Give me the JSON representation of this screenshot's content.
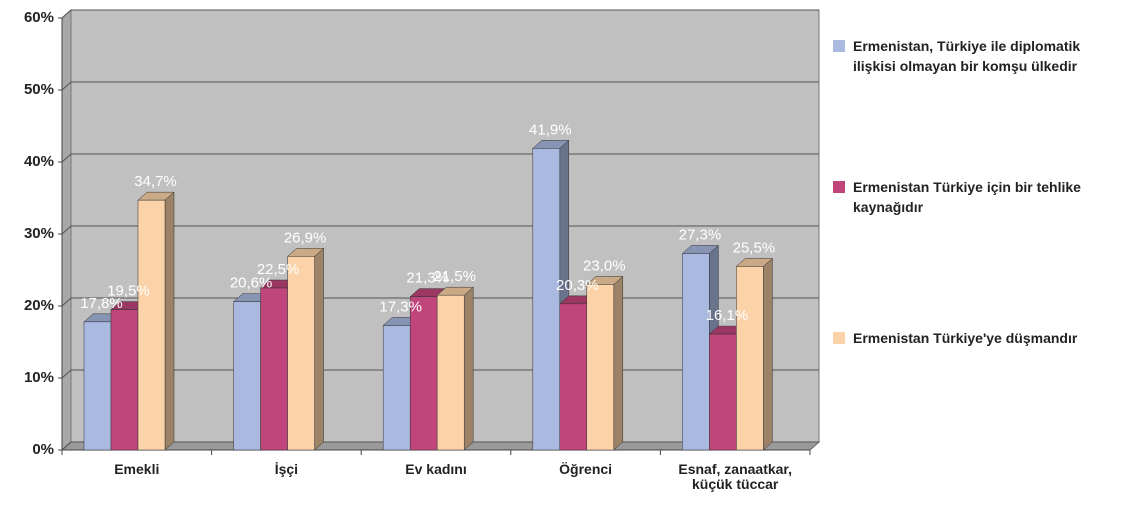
{
  "chart_data": {
    "type": "bar",
    "categories": [
      "Emekli",
      "İşçi",
      "Ev kadını",
      "Öğrenci",
      "Esnaf, zanaatkar, küçük tüccar"
    ],
    "series": [
      {
        "name": "Ermenistan, Türkiye ile diplomatik ilişkisi olmayan bir komşu ülkedir",
        "color": "#a9b9e0",
        "values": [
          17.8,
          20.6,
          17.3,
          41.9,
          27.3
        ],
        "value_labels": [
          "17,8%",
          "20,6%",
          "17,3%",
          "41,9%",
          "27,3%"
        ]
      },
      {
        "name": "Ermenistan Türkiye için bir tehlike kaynağıdır",
        "color": "#c0457a",
        "values": [
          19.5,
          22.5,
          21.3,
          20.3,
          16.1
        ],
        "value_labels": [
          "19,5%",
          "22,5%",
          "21,3%",
          "20,3%",
          "16,1%"
        ]
      },
      {
        "name": "Ermenistan Türkiye'ye düşmandır",
        "color": "#fcd3a8",
        "values": [
          34.7,
          26.9,
          21.5,
          23.0,
          25.5
        ],
        "value_labels": [
          "34,7%",
          "26,9%",
          "21,5%",
          "23,0%",
          "25,5%"
        ]
      }
    ],
    "ylim": [
      0,
      60
    ],
    "yticks": [
      {
        "value": 0,
        "label": "0%"
      },
      {
        "value": 10,
        "label": "10%"
      },
      {
        "value": 20,
        "label": "20%"
      },
      {
        "value": 30,
        "label": "30%"
      },
      {
        "value": 40,
        "label": "40%"
      },
      {
        "value": 50,
        "label": "50%"
      },
      {
        "value": 60,
        "label": "60%"
      }
    ],
    "grid": true
  }
}
